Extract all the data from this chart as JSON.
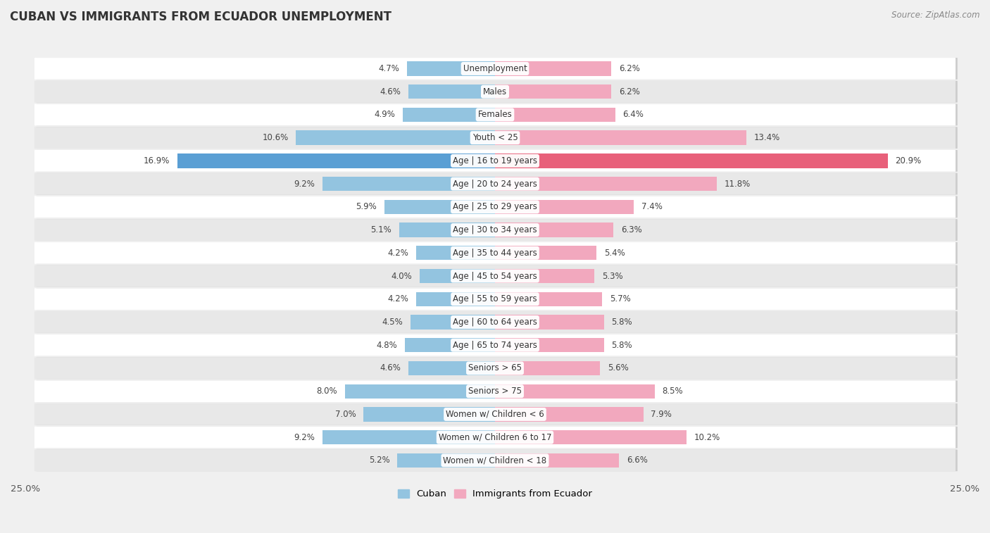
{
  "title": "CUBAN VS IMMIGRANTS FROM ECUADOR UNEMPLOYMENT",
  "source": "Source: ZipAtlas.com",
  "categories": [
    "Unemployment",
    "Males",
    "Females",
    "Youth < 25",
    "Age | 16 to 19 years",
    "Age | 20 to 24 years",
    "Age | 25 to 29 years",
    "Age | 30 to 34 years",
    "Age | 35 to 44 years",
    "Age | 45 to 54 years",
    "Age | 55 to 59 years",
    "Age | 60 to 64 years",
    "Age | 65 to 74 years",
    "Seniors > 65",
    "Seniors > 75",
    "Women w/ Children < 6",
    "Women w/ Children 6 to 17",
    "Women w/ Children < 18"
  ],
  "cuban": [
    4.7,
    4.6,
    4.9,
    10.6,
    16.9,
    9.2,
    5.9,
    5.1,
    4.2,
    4.0,
    4.2,
    4.5,
    4.8,
    4.6,
    8.0,
    7.0,
    9.2,
    5.2
  ],
  "ecuador": [
    6.2,
    6.2,
    6.4,
    13.4,
    20.9,
    11.8,
    7.4,
    6.3,
    5.4,
    5.3,
    5.7,
    5.8,
    5.8,
    5.6,
    8.5,
    7.9,
    10.2,
    6.6
  ],
  "cuban_color": "#93c4e0",
  "ecuador_color": "#f2a8be",
  "highlight_cuban_color": "#5a9fd4",
  "highlight_ecuador_color": "#e8607a",
  "background_color": "#f0f0f0",
  "row_bg_light": "#ffffff",
  "row_bg_dark": "#e8e8e8",
  "xlim": 25.0,
  "label_fontsize": 8.5,
  "value_fontsize": 8.5,
  "title_fontsize": 12,
  "source_fontsize": 8.5,
  "legend_fontsize": 9.5
}
